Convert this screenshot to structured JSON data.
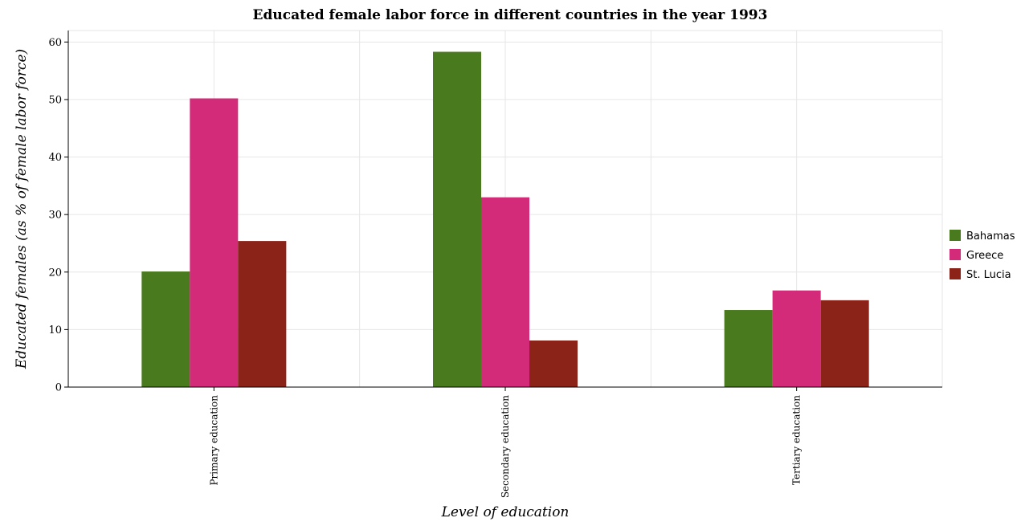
{
  "chart_data": {
    "type": "bar",
    "title": "Educated female labor force in different countries in the year 1993",
    "xlabel": "Level of education",
    "ylabel": "Educated females (as % of female labor force)",
    "categories": [
      "Primary education",
      "Secondary education",
      "Tertiary education"
    ],
    "series": [
      {
        "name": "Bahamas",
        "color": "#4a7a1e",
        "values": [
          20.1,
          58.3,
          13.4
        ]
      },
      {
        "name": "Greece",
        "color": "#d42a7a",
        "values": [
          50.2,
          33.0,
          16.8
        ]
      },
      {
        "name": "St. Lucia",
        "color": "#8b2318",
        "values": [
          25.4,
          8.1,
          15.1
        ]
      }
    ],
    "ylim": [
      0,
      62
    ],
    "yticks": [
      0,
      10,
      20,
      30,
      40,
      50,
      60
    ],
    "grid": true,
    "legend_position": "right"
  }
}
